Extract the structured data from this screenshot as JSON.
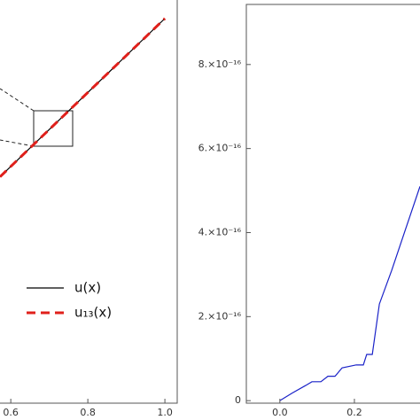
{
  "chart_data": [
    {
      "type": "line",
      "x": [
        0.572,
        1.0
      ],
      "series": [
        {
          "name": "u(x)",
          "color": "#000000",
          "dash": false,
          "values": [
            0.572,
            1.0
          ]
        },
        {
          "name": "u₁₃(x)",
          "color": "#e0201b",
          "dash": true,
          "values": [
            0.572,
            1.0
          ]
        }
      ],
      "xlim": [
        0.572,
        1.032
      ],
      "ylim": [
        -0.04,
        1.05
      ],
      "xticks": [
        0.6,
        0.8,
        {
          "value": 1.0,
          "label": "1.0"
        }
      ]
    },
    {
      "type": "line",
      "x": [
        0,
        0.033,
        0.069,
        0.086,
        0.11,
        0.129,
        0.148,
        0.167,
        0.205,
        0.224,
        0.233,
        0.248,
        0.267,
        0.3,
        0.338,
        0.376
      ],
      "series": [
        {
          "name": null,
          "color": "#1a22c8",
          "dash": false,
          "values": [
            0,
            1.8e-17,
            3.6e-17,
            4.5e-17,
            4.5e-17,
            5.8e-17,
            5.8e-17,
            7.8e-17,
            8.5e-17,
            8.5e-17,
            1.1e-16,
            1.1e-16,
            2.3e-16,
            3.1e-16,
            4.1e-16,
            5.1e-16
          ]
        }
      ],
      "xlim": [
        -0.09,
        0.376
      ],
      "ylim": [
        -6e-18,
        9.43e-16
      ],
      "xticks": [
        {
          "value": 0,
          "label": "0.0"
        },
        0.2
      ],
      "yticks": [
        0,
        {
          "value": 2e-16,
          "label": "2.×10⁻¹⁶"
        },
        {
          "value": 4e-16,
          "label": "4.×10⁻¹⁶"
        },
        {
          "value": 6e-16,
          "label": "6.×10⁻¹⁶"
        },
        {
          "value": 8e-16,
          "label": "8.×10⁻¹⁶"
        }
      ]
    }
  ]
}
